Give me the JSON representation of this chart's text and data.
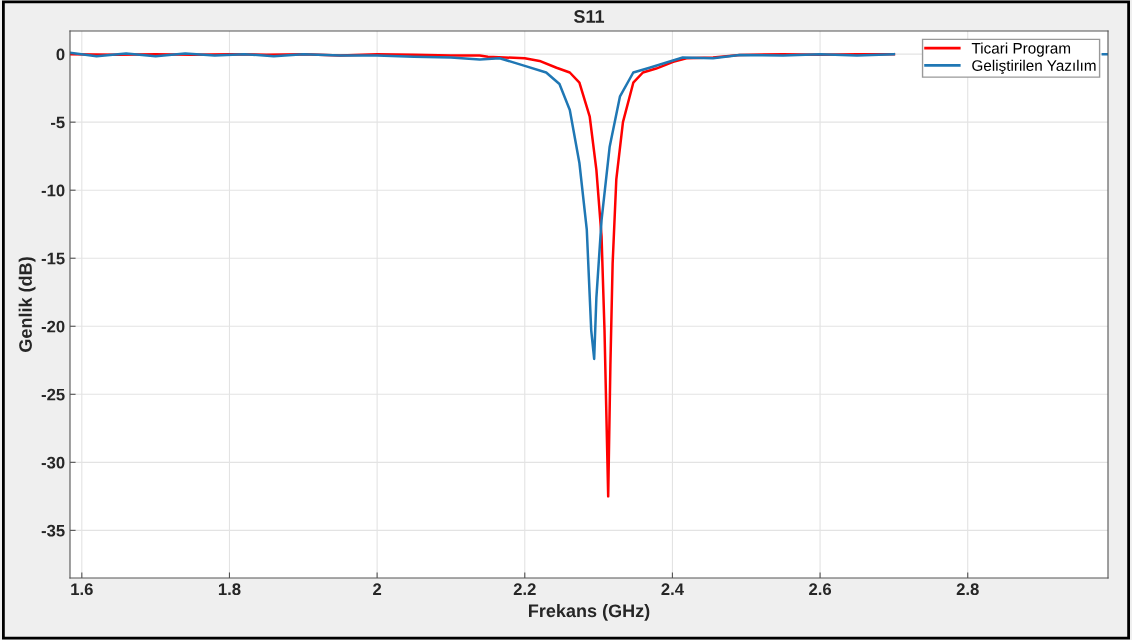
{
  "chart_data": {
    "type": "line",
    "title": "S11",
    "xlabel": "Frekans (GHz)",
    "ylabel": "Genlik (dB)",
    "xlim": [
      1.584,
      2.99
    ],
    "ylim": [
      -38.5,
      1.7
    ],
    "xticks": [
      1.6,
      1.8,
      2,
      2.2,
      2.4,
      2.6,
      2.8
    ],
    "yticks": [
      0,
      -5,
      -10,
      -15,
      -20,
      -25,
      -30,
      -35
    ],
    "grid": true,
    "legend": "top right",
    "line_style": "solid",
    "marker": "none",
    "series": [
      {
        "name": "Ticari Program",
        "color": "#ff0000",
        "x": [
          1.584,
          1.65,
          1.7,
          1.75,
          1.8,
          1.85,
          1.9,
          1.95,
          2.0,
          2.05,
          2.1,
          2.139,
          2.15,
          2.2,
          2.22,
          2.243,
          2.261,
          2.274,
          2.288,
          2.297,
          2.304,
          2.308,
          2.313,
          2.316,
          2.319,
          2.324,
          2.333,
          2.347,
          2.36,
          2.378,
          2.401,
          2.419,
          2.455,
          2.491,
          2.55,
          2.6,
          2.65,
          2.7
        ],
        "values": [
          0,
          -0.05,
          0,
          -0.05,
          0,
          -0.05,
          0,
          -0.1,
          0,
          -0.05,
          -0.1,
          -0.1,
          -0.2,
          -0.3,
          -0.5,
          -1.0,
          -1.35,
          -2.1,
          -4.6,
          -8.5,
          -13.4,
          -20.3,
          -32.5,
          -22.8,
          -15.4,
          -9.2,
          -5.0,
          -2.1,
          -1.35,
          -1.06,
          -0.57,
          -0.3,
          -0.25,
          -0.07,
          0,
          -0.05,
          0,
          0
        ]
      },
      {
        "name": "Geliştirilen Yazılım",
        "color": "#1f77b4",
        "x": [
          1.584,
          1.62,
          1.66,
          1.7,
          1.74,
          1.78,
          1.82,
          1.86,
          1.9,
          1.95,
          2.0,
          2.05,
          2.1,
          2.139,
          2.166,
          2.2,
          2.229,
          2.247,
          2.261,
          2.274,
          2.284,
          2.29,
          2.294,
          2.297,
          2.304,
          2.315,
          2.329,
          2.347,
          2.369,
          2.392,
          2.414,
          2.455,
          2.491,
          2.55,
          2.6,
          2.65,
          2.7,
          2.85,
          2.983,
          2.99
        ],
        "values": [
          0.1,
          -0.15,
          0.05,
          -0.15,
          0.05,
          -0.1,
          0,
          -0.15,
          0,
          -0.1,
          -0.1,
          -0.2,
          -0.25,
          -0.4,
          -0.3,
          -0.86,
          -1.35,
          -2.2,
          -4.1,
          -8.0,
          -12.9,
          -20.3,
          -22.4,
          -17.9,
          -12.2,
          -6.8,
          -3.1,
          -1.35,
          -1.0,
          -0.62,
          -0.25,
          -0.3,
          -0.07,
          -0.1,
          0,
          -0.1,
          0,
          null,
          0,
          0
        ]
      }
    ]
  }
}
